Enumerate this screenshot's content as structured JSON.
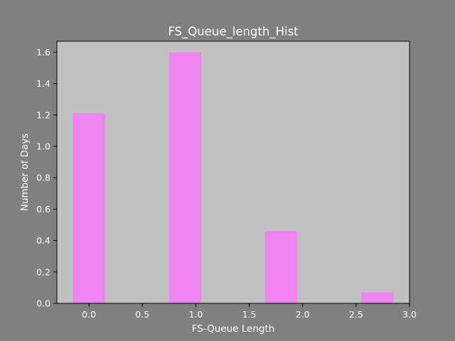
{
  "chart_data": {
    "type": "bar",
    "title": "FS_Queue_length_Hist",
    "xlabel": "FS-Queue Length",
    "ylabel": "Number of Days",
    "x": [
      0,
      0.9,
      1.8,
      2.7
    ],
    "values": [
      1.21,
      1.6,
      0.46,
      0.07
    ],
    "bar_width": 0.3,
    "xlim": [
      -0.3,
      3.0
    ],
    "ylim": [
      0,
      1.67
    ],
    "xticks": [
      0.0,
      0.5,
      1.0,
      1.5,
      2.0,
      2.5,
      3.0
    ],
    "xtick_labels": [
      "0.0",
      "0.5",
      "1.0",
      "1.5",
      "2.0",
      "2.5",
      "3.0"
    ],
    "yticks": [
      0.0,
      0.2,
      0.4,
      0.6,
      0.8,
      1.0,
      1.2,
      1.4,
      1.6
    ],
    "ytick_labels": [
      "0.0",
      "0.2",
      "0.4",
      "0.6",
      "0.8",
      "1.0",
      "1.2",
      "1.4",
      "1.6"
    ],
    "grid": false,
    "colors": {
      "figure_background": "#808080",
      "axes_background": "#c0c0c0",
      "bar": "#ee82ee",
      "text": "#ffffff",
      "spine": "#000000"
    }
  }
}
